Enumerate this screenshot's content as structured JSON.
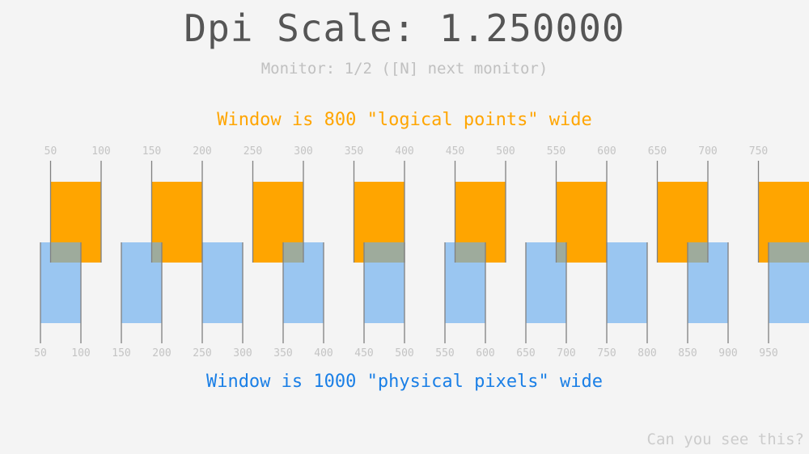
{
  "title": "Dpi Scale: 1.250000",
  "monitor": "Monitor: 1/2 ([N] next monitor)",
  "logical_caption": "Window is 800 \"logical points\" wide",
  "physical_caption": "Window is 1000 \"physical pixels\" wide",
  "hidden_text": "Can you see this?",
  "dpi_scale": 1.25,
  "logical_ticks": [
    "50",
    "100",
    "150",
    "200",
    "250",
    "300",
    "350",
    "400",
    "450",
    "500",
    "550",
    "600",
    "650",
    "700",
    "750"
  ],
  "physical_ticks": [
    "50",
    "100",
    "150",
    "200",
    "250",
    "300",
    "350",
    "400",
    "450",
    "500",
    "550",
    "600",
    "650",
    "700",
    "750",
    "800",
    "850",
    "900",
    "950"
  ],
  "colors": {
    "background": "#f4f4f4",
    "logical": "#ffa500",
    "physical": "#1a7fe6",
    "physical_box": "#6aaef0",
    "tick": "#808080"
  }
}
